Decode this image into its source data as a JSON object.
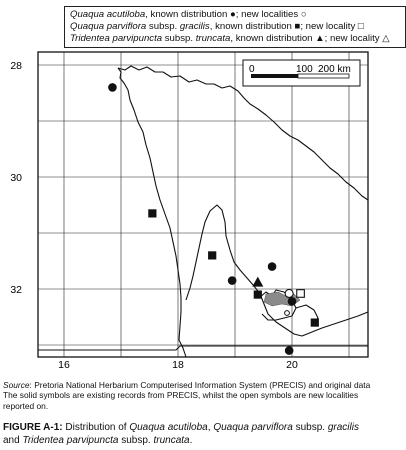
{
  "legend": {
    "row1": {
      "species": "Quaqua acutiloba",
      "rest": ", known distribution ●; new localities ○"
    },
    "row2": {
      "species": "Quaqua parviflora",
      "middle": " subsp. ",
      "subsp": "gracilis",
      "rest": ", known distribution ■; new locality □"
    },
    "row3": {
      "species": "Tridentea parvipuncta",
      "middle": " subsp. ",
      "subsp": "truncata",
      "rest": ", known distribution ▲; new locality △"
    }
  },
  "map": {
    "lat_labels": [
      "28",
      "30",
      "32"
    ],
    "lon_labels": [
      "16",
      "18",
      "20"
    ],
    "scale_labels": [
      "0",
      "100",
      "200 km"
    ],
    "colors": {
      "lines": "#111111",
      "grid": "#222222",
      "town": "#888888"
    },
    "symbols": [
      {
        "type": "circle",
        "lon": 16.85,
        "lat": 28.4
      },
      {
        "type": "square",
        "lon": 17.55,
        "lat": 30.65
      },
      {
        "type": "square",
        "lon": 18.6,
        "lat": 31.4
      },
      {
        "type": "circle",
        "lon": 18.95,
        "lat": 31.85
      },
      {
        "type": "circle",
        "lon": 19.65,
        "lat": 31.6
      },
      {
        "type": "triangle",
        "lon": 19.4,
        "lat": 31.88
      },
      {
        "type": "square",
        "lon": 19.4,
        "lat": 32.1
      },
      {
        "type": "circle_open",
        "lon": 19.95,
        "lat": 32.08
      },
      {
        "type": "square_open",
        "lon": 20.15,
        "lat": 32.08
      },
      {
        "type": "circle",
        "lon": 20.0,
        "lat": 32.22
      },
      {
        "type": "square",
        "lon": 20.4,
        "lat": 32.6
      },
      {
        "type": "circle",
        "lon": 19.95,
        "lat": 33.1
      }
    ]
  },
  "caption": {
    "source_label": "Source",
    "source_text": ": Pretoria National Herbarium Computerised Information System (PRECIS) and original data",
    "line2": "The solid symbols are existing records from PRECIS, whilst the open symbols are new localities",
    "line3": "reported on."
  },
  "figure_title": {
    "label": "FIGURE A-1:",
    "t1": " Distribution of ",
    "s1": "Quaqua acutiloba",
    "t2": ", ",
    "s2": "Quaqua parviflora",
    "t3": " subsp. ",
    "s3": "gracilis",
    "t4": "and ",
    "s4": "Tridentea parvipuncta",
    "t5": " subsp. ",
    "s5": "truncata",
    "t6": "."
  }
}
